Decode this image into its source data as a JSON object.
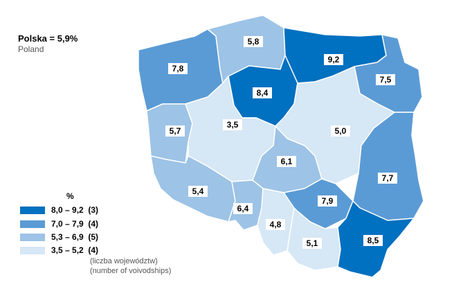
{
  "title": "Polska = 5,9%",
  "subtitle": "Poland",
  "legend": {
    "unit": "%",
    "note_pl": "(liczba województw)",
    "note_en": "(number of voivodships)",
    "classes": [
      {
        "label": "8,0 – 9,2  (3)",
        "color": "#0070C0"
      },
      {
        "label": "7,0 – 7,9  (4)",
        "color": "#5B9BD5"
      },
      {
        "label": "5,3 – 6,9  (5)",
        "color": "#9DC3E6"
      },
      {
        "label": "3,5 – 5,2  (4)",
        "color": "#D6E7F5"
      }
    ]
  },
  "regions": [
    {
      "id": "zachodniopomorskie",
      "value": "7,8",
      "color": "#5B9BD5"
    },
    {
      "id": "pomorskie",
      "value": "5,8",
      "color": "#9DC3E6"
    },
    {
      "id": "warminsko-mazurskie",
      "value": "9,2",
      "color": "#0070C0"
    },
    {
      "id": "podlaskie",
      "value": "7,5",
      "color": "#5B9BD5"
    },
    {
      "id": "kujawsko-pomorskie",
      "value": "8,4",
      "color": "#0070C0"
    },
    {
      "id": "lubuskie",
      "value": "5,7",
      "color": "#9DC3E6"
    },
    {
      "id": "wielkopolskie",
      "value": "3,5",
      "color": "#D6E7F5"
    },
    {
      "id": "mazowieckie",
      "value": "5,0",
      "color": "#D6E7F5"
    },
    {
      "id": "lodzkie",
      "value": "6,1",
      "color": "#9DC3E6"
    },
    {
      "id": "lubelskie",
      "value": "7,7",
      "color": "#5B9BD5"
    },
    {
      "id": "dolnoslaskie",
      "value": "5,4",
      "color": "#9DC3E6"
    },
    {
      "id": "opolskie",
      "value": "6,4",
      "color": "#9DC3E6"
    },
    {
      "id": "slaskie",
      "value": "4,8",
      "color": "#D6E7F5"
    },
    {
      "id": "swietokrzyskie",
      "value": "7,9",
      "color": "#5B9BD5"
    },
    {
      "id": "malopolskie",
      "value": "5,1",
      "color": "#D6E7F5"
    },
    {
      "id": "podkarpackie",
      "value": "8,5",
      "color": "#0070C0"
    }
  ]
}
